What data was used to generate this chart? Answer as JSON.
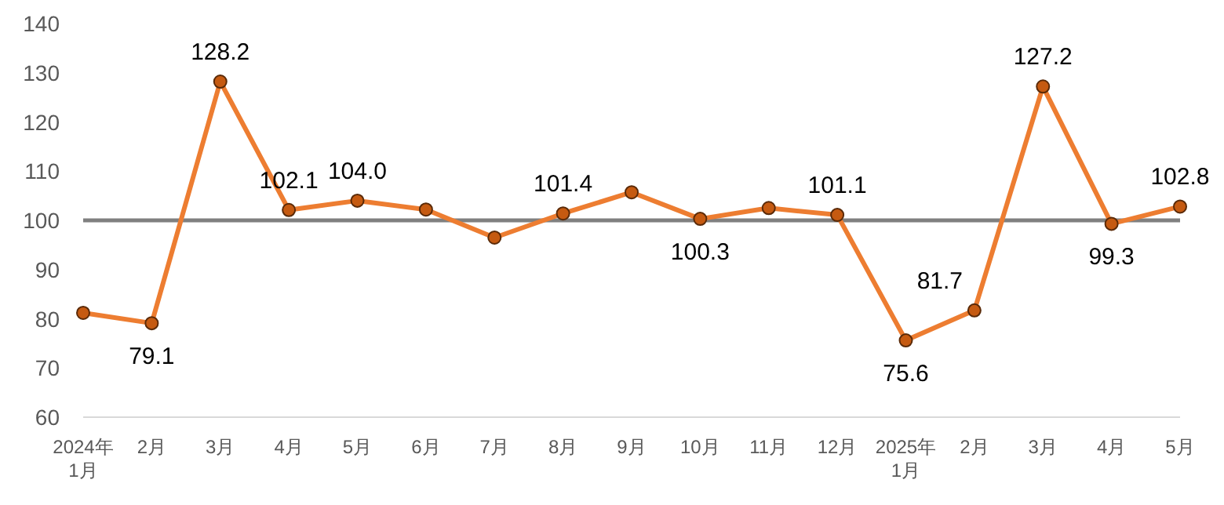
{
  "chart_data": {
    "type": "line",
    "categories": [
      "2024年\n1月",
      "2月",
      "3月",
      "4月",
      "5月",
      "6月",
      "7月",
      "8月",
      "9月",
      "10月",
      "11月",
      "12月",
      "2025年\n1月",
      "2月",
      "3月",
      "4月",
      "5月"
    ],
    "series": [
      {
        "color": "#ed7d31",
        "values": [
          81.2,
          79.1,
          128.2,
          102.1,
          104.0,
          102.2,
          96.5,
          101.4,
          105.7,
          100.3,
          102.5,
          101.1,
          75.6,
          81.7,
          127.2,
          99.3,
          102.8
        ],
        "value_labels": [
          null,
          "79.1",
          "128.2",
          "102.1",
          "104.0",
          null,
          null,
          "101.4",
          null,
          "100.3",
          null,
          "101.1",
          "75.6",
          "81.7",
          "127.2",
          "99.3",
          "102.8"
        ]
      }
    ],
    "ylim": [
      60,
      140
    ],
    "yticks": [
      60,
      70,
      80,
      90,
      100,
      110,
      120,
      130,
      140
    ],
    "ref_lines": [
      {
        "axis": "y",
        "value": 100,
        "color": "#808080"
      }
    ],
    "marker": "circle",
    "grid": false
  }
}
